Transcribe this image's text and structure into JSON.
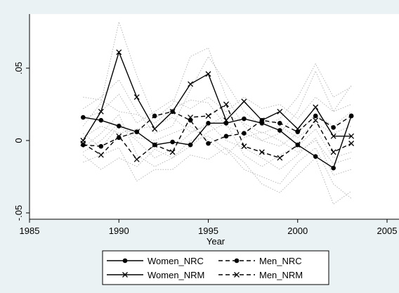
{
  "chart_data": {
    "type": "line",
    "xlabel": "Year",
    "ylabel": "",
    "xlim": [
      1985,
      2005
    ],
    "ylim": [
      -0.05,
      0.08
    ],
    "x_ticks": [
      {
        "value": 1985,
        "label": "1985"
      },
      {
        "value": 1990,
        "label": "1990"
      },
      {
        "value": 1995,
        "label": "1995"
      },
      {
        "value": 2000,
        "label": "2000"
      },
      {
        "value": 2005,
        "label": "2005"
      }
    ],
    "y_ticks": [
      {
        "value": -0.05,
        "label": "-.05"
      },
      {
        "value": 0,
        "label": "0"
      },
      {
        "value": 0.05,
        "label": ".05"
      }
    ],
    "grid": false,
    "legend_position": "bottom",
    "x": [
      1988,
      1989,
      1990,
      1991,
      1992,
      1993,
      1994,
      1995,
      1996,
      1997,
      1998,
      1999,
      2000,
      2001,
      2002,
      2003
    ],
    "series": [
      {
        "name": "Women_NRC",
        "style": "solid",
        "marker": "dot",
        "values": [
          0.016,
          0.014,
          0.01,
          0.006,
          -0.003,
          -0.001,
          -0.003,
          0.012,
          0.012,
          0.015,
          0.012,
          0.007,
          -0.003,
          -0.011,
          -0.019,
          0.017
        ]
      },
      {
        "name": "Women_NRM",
        "style": "solid",
        "marker": "x",
        "values": [
          0.0,
          0.02,
          0.061,
          0.03,
          0.008,
          0.02,
          0.039,
          0.046,
          0.014,
          0.027,
          0.014,
          0.02,
          0.008,
          0.023,
          0.003,
          0.003
        ]
      },
      {
        "name": "Men_NRC",
        "style": "dashed",
        "marker": "dot",
        "values": [
          -0.003,
          -0.004,
          0.002,
          0.006,
          0.017,
          0.02,
          0.014,
          -0.002,
          0.003,
          0.005,
          0.014,
          0.012,
          0.006,
          0.017,
          0.009,
          0.017
        ]
      },
      {
        "name": "Men_NRM",
        "style": "dashed",
        "marker": "x",
        "values": [
          -0.002,
          -0.01,
          0.003,
          -0.013,
          -0.003,
          -0.008,
          0.016,
          0.017,
          0.025,
          -0.004,
          -0.008,
          -0.012,
          -0.003,
          0.014,
          -0.008,
          -0.002
        ]
      }
    ],
    "background_series": [
      {
        "values": [
          0.03,
          0.028,
          0.02,
          0.018,
          0.012,
          0.022,
          0.028,
          0.026,
          0.01,
          0.005,
          0.0,
          -0.004,
          0.005,
          0.018,
          0.01,
          0.02
        ]
      },
      {
        "values": [
          0.022,
          0.03,
          0.042,
          0.02,
          0.005,
          0.01,
          0.035,
          0.058,
          0.04,
          0.02,
          0.01,
          0.015,
          0.03,
          0.053,
          0.03,
          0.037
        ]
      },
      {
        "values": [
          0.01,
          0.026,
          0.082,
          0.045,
          0.015,
          0.025,
          0.058,
          0.064,
          0.03,
          0.01,
          0.0,
          0.005,
          0.02,
          0.048,
          0.02,
          0.038
        ]
      },
      {
        "values": [
          -0.005,
          0.005,
          0.018,
          -0.01,
          -0.018,
          -0.012,
          0.0,
          0.003,
          -0.006,
          -0.02,
          -0.025,
          -0.03,
          -0.015,
          -0.005,
          -0.03,
          -0.04
        ]
      },
      {
        "values": [
          -0.015,
          -0.01,
          -0.005,
          -0.028,
          -0.02,
          -0.02,
          -0.01,
          -0.013,
          -0.005,
          -0.015,
          -0.03,
          -0.036,
          -0.024,
          -0.012,
          -0.044,
          -0.035
        ]
      },
      {
        "values": [
          0.005,
          -0.005,
          0.01,
          0.0,
          -0.012,
          -0.006,
          0.005,
          0.012,
          0.0,
          -0.005,
          -0.012,
          -0.02,
          -0.01,
          0.002,
          -0.024,
          -0.02
        ]
      },
      {
        "values": [
          -0.01,
          -0.02,
          -0.012,
          -0.018,
          -0.006,
          -0.012,
          -0.004,
          0.006,
          0.012,
          -0.01,
          -0.018,
          -0.01,
          -0.004,
          0.008,
          -0.012,
          -0.008
        ]
      },
      {
        "values": [
          0.015,
          0.02,
          0.032,
          0.012,
          0.02,
          0.028,
          0.022,
          0.03,
          0.02,
          0.03,
          0.022,
          0.025,
          0.015,
          0.03,
          0.02,
          0.025
        ]
      },
      {
        "values": [
          0.002,
          0.01,
          0.005,
          0.008,
          0.01,
          0.016,
          0.006,
          0.01,
          0.018,
          0.012,
          0.005,
          0.01,
          0.002,
          0.012,
          0.005,
          0.01
        ]
      },
      {
        "values": [
          -0.008,
          0.0,
          0.012,
          0.002,
          0.0,
          0.005,
          0.01,
          0.0,
          -0.01,
          0.002,
          0.006,
          0.0,
          -0.008,
          0.0,
          -0.016,
          -0.012
        ]
      }
    ]
  }
}
